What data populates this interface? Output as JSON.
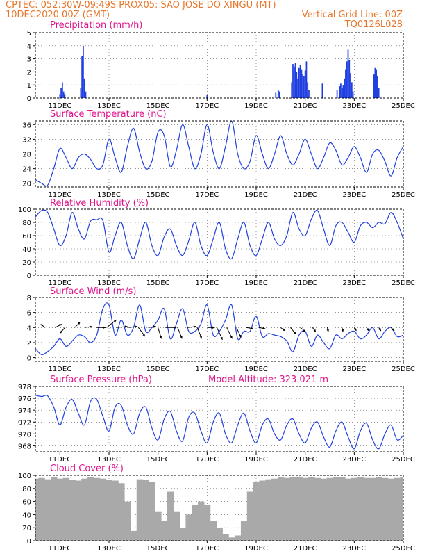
{
  "header": {
    "line1": "CPTEC:  052:30W-09:49S   PROX05: SAO JOSE DO XINGU (MT)",
    "date": "10DEC2020 00Z (GMT)",
    "grid_note": "Vertical Grid Line: 00Z",
    "model": "TQ0126L028"
  },
  "colors": {
    "header": "#e8762a",
    "title": "#e0138c",
    "series": "#1f3fe0",
    "cloud": "#a9a9a9",
    "arrow": "#000000"
  },
  "x_ticks": [
    "11DEC",
    "13DEC",
    "15DEC",
    "17DEC",
    "19DEC",
    "21DEC",
    "23DEC",
    "25DEC"
  ],
  "chart_data": [
    {
      "type": "bar",
      "title": "Precipitation (mm/h)",
      "xlabel": "",
      "ylabel": "",
      "ylim": [
        0,
        5
      ],
      "yticks": [
        0,
        1,
        2,
        3,
        4,
        5
      ],
      "x_unit": "day offset from 10DEC2020 00Z",
      "bars": [
        [
          1.0,
          0.3
        ],
        [
          1.05,
          0.8
        ],
        [
          1.1,
          1.2
        ],
        [
          1.15,
          0.5
        ],
        [
          1.2,
          0.3
        ],
        [
          1.85,
          0.8
        ],
        [
          1.9,
          3.2
        ],
        [
          1.95,
          4.0
        ],
        [
          2.0,
          1.5
        ],
        [
          2.05,
          0.5
        ],
        [
          3.5,
          0.05
        ],
        [
          7.0,
          0.25
        ],
        [
          9.8,
          0.4
        ],
        [
          9.9,
          0.6
        ],
        [
          9.95,
          0.5
        ],
        [
          10.45,
          1.2
        ],
        [
          10.5,
          2.6
        ],
        [
          10.55,
          2.4
        ],
        [
          10.6,
          2.7
        ],
        [
          10.65,
          2.0
        ],
        [
          10.7,
          1.5
        ],
        [
          10.75,
          2.3
        ],
        [
          10.8,
          2.5
        ],
        [
          10.85,
          2.2
        ],
        [
          10.9,
          1.8
        ],
        [
          10.95,
          1.7
        ],
        [
          11.0,
          2.1
        ],
        [
          11.05,
          2.8
        ],
        [
          11.1,
          1.2
        ],
        [
          11.15,
          0.6
        ],
        [
          11.7,
          1.1
        ],
        [
          12.3,
          0.6
        ],
        [
          12.4,
          0.9
        ],
        [
          12.45,
          1.1
        ],
        [
          12.5,
          0.8
        ],
        [
          12.55,
          1.0
        ],
        [
          12.6,
          1.5
        ],
        [
          12.65,
          2.2
        ],
        [
          12.7,
          2.8
        ],
        [
          12.75,
          3.7
        ],
        [
          12.8,
          2.9
        ],
        [
          12.85,
          1.9
        ],
        [
          12.9,
          1.2
        ],
        [
          12.95,
          0.5
        ],
        [
          13.8,
          1.8
        ],
        [
          13.85,
          2.3
        ],
        [
          13.9,
          2.2
        ],
        [
          13.95,
          1.7
        ],
        [
          14.0,
          0.8
        ]
      ]
    },
    {
      "type": "line",
      "title": "Surface Temperature (nC)",
      "ylim": [
        19,
        37
      ],
      "yticks": [
        20,
        24,
        28,
        32,
        36
      ],
      "x": [
        0,
        0.25,
        0.5,
        0.75,
        1,
        1.25,
        1.5,
        1.75,
        2,
        2.25,
        2.5,
        2.75,
        3,
        3.25,
        3.5,
        3.75,
        4,
        4.25,
        4.5,
        4.75,
        5,
        5.25,
        5.5,
        5.75,
        6,
        6.25,
        6.5,
        6.75,
        7,
        7.25,
        7.5,
        7.75,
        8,
        8.25,
        8.5,
        8.75,
        9,
        9.25,
        9.5,
        9.75,
        10,
        10.25,
        10.5,
        10.75,
        11,
        11.25,
        11.5,
        11.75,
        12,
        12.25,
        12.5,
        12.75,
        13,
        13.25,
        13.5,
        13.75,
        14,
        14.25,
        14.5,
        14.75,
        15
      ],
      "values": [
        21,
        20,
        19.5,
        24,
        29.5,
        27,
        24,
        27,
        28,
        26.5,
        24,
        25,
        32,
        27,
        23,
        30,
        35,
        28.5,
        24,
        26,
        34,
        33,
        24.5,
        29,
        36,
        30,
        24,
        28,
        36,
        28.5,
        24,
        30,
        37,
        28,
        24,
        26,
        33,
        28,
        24,
        28,
        33,
        28,
        25,
        28,
        32,
        28,
        24,
        27,
        31,
        29,
        25,
        27,
        30,
        27,
        23,
        28,
        29,
        26,
        22,
        27,
        30
      ]
    },
    {
      "type": "line",
      "title": "Relative Humidity (%)",
      "ylim": [
        0,
        100
      ],
      "yticks": [
        0,
        20,
        40,
        60,
        80,
        100
      ],
      "x": [
        0,
        0.25,
        0.5,
        0.75,
        1,
        1.25,
        1.5,
        1.75,
        2,
        2.25,
        2.5,
        2.75,
        3,
        3.25,
        3.5,
        3.75,
        4,
        4.25,
        4.5,
        4.75,
        5,
        5.25,
        5.5,
        5.75,
        6,
        6.25,
        6.5,
        6.75,
        7,
        7.25,
        7.5,
        7.75,
        8,
        8.25,
        8.5,
        8.75,
        9,
        9.25,
        9.5,
        9.75,
        10,
        10.25,
        10.5,
        10.75,
        11,
        11.25,
        11.5,
        11.75,
        12,
        12.25,
        12.5,
        12.75,
        13,
        13.25,
        13.5,
        13.75,
        14,
        14.25,
        14.5,
        14.75,
        15
      ],
      "values": [
        88,
        98,
        95,
        70,
        45,
        60,
        95,
        70,
        55,
        82,
        84,
        83,
        35,
        60,
        80,
        45,
        25,
        55,
        80,
        45,
        30,
        58,
        70,
        45,
        30,
        52,
        80,
        45,
        30,
        55,
        80,
        40,
        25,
        55,
        80,
        45,
        30,
        55,
        80,
        55,
        45,
        60,
        95,
        70,
        60,
        85,
        98,
        70,
        45,
        75,
        80,
        65,
        50,
        75,
        80,
        72,
        80,
        78,
        95,
        80,
        55
      ]
    },
    {
      "type": "line",
      "title": "Surface Wind (m/s)",
      "ylim": [
        -0.5,
        8
      ],
      "yticks": [
        0,
        2,
        4,
        6,
        8
      ],
      "x": [
        0,
        0.25,
        0.5,
        0.75,
        1,
        1.25,
        1.5,
        1.75,
        2,
        2.25,
        2.5,
        2.75,
        3,
        3.25,
        3.5,
        3.75,
        4,
        4.25,
        4.5,
        4.75,
        5,
        5.25,
        5.5,
        5.75,
        6,
        6.25,
        6.5,
        6.75,
        7,
        7.25,
        7.5,
        7.75,
        8,
        8.25,
        8.5,
        8.75,
        9,
        9.25,
        9.5,
        9.75,
        10,
        10.25,
        10.5,
        10.75,
        11,
        11.25,
        11.5,
        11.75,
        12,
        12.25,
        12.5,
        12.75,
        13,
        13.25,
        13.5,
        13.75,
        14,
        14.25,
        14.5,
        14.75,
        15
      ],
      "values": [
        1.2,
        0.4,
        0.8,
        1.5,
        2.5,
        1.5,
        2.2,
        3.0,
        2.8,
        2.0,
        3.0,
        6.5,
        7.0,
        3.0,
        5.0,
        3.0,
        4.0,
        7.0,
        3.5,
        4.0,
        5.0,
        6.5,
        2.5,
        4.5,
        6.5,
        3.5,
        3.5,
        4.5,
        7.0,
        3.0,
        3.5,
        5.0,
        7.0,
        2.5,
        3.5,
        3.5,
        5.5,
        2.8,
        3.2,
        3.0,
        2.8,
        2.2,
        0.8,
        3.0,
        3.5,
        1.5,
        3.0,
        2.0,
        1.2,
        3.0,
        2.5,
        3.2,
        3.5,
        2.5,
        3.0,
        4.0,
        2.5,
        3.5,
        4.0,
        2.8,
        3.0
      ]
    },
    {
      "type": "line",
      "title": "Surface Pressure (hPa)",
      "annotation": "Model Altitude: 323.021 m",
      "ylim": [
        967,
        978
      ],
      "yticks": [
        968,
        970,
        972,
        974,
        976,
        978
      ],
      "x": [
        0,
        0.25,
        0.5,
        0.75,
        1,
        1.25,
        1.5,
        1.75,
        2,
        2.25,
        2.5,
        2.75,
        3,
        3.25,
        3.5,
        3.75,
        4,
        4.25,
        4.5,
        4.75,
        5,
        5.25,
        5.5,
        5.75,
        6,
        6.25,
        6.5,
        6.75,
        7,
        7.25,
        7.5,
        7.75,
        8,
        8.25,
        8.5,
        8.75,
        9,
        9.25,
        9.5,
        9.75,
        10,
        10.25,
        10.5,
        10.75,
        11,
        11.25,
        11.5,
        11.75,
        12,
        12.25,
        12.5,
        12.75,
        13,
        13.25,
        13.5,
        13.75,
        14,
        14.25,
        14.5,
        14.75,
        15
      ],
      "values": [
        976.5,
        976.3,
        976.4,
        974.5,
        971.5,
        974.5,
        975.8,
        973.5,
        971.5,
        975.5,
        975.8,
        973.0,
        970.5,
        974.5,
        974.8,
        971.5,
        970.0,
        973.5,
        974.5,
        971.0,
        969.0,
        972.5,
        973.8,
        970.5,
        968.8,
        972.8,
        973.5,
        970.5,
        968.5,
        972.0,
        973.5,
        970.0,
        968.5,
        971.5,
        973.5,
        970.5,
        968.5,
        971.5,
        972.5,
        970.0,
        969.0,
        971.5,
        972.5,
        970.0,
        968.5,
        971.0,
        972.0,
        969.5,
        967.8,
        970.5,
        972.0,
        969.5,
        967.5,
        970.5,
        971.8,
        969.0,
        967.5,
        970.0,
        971.5,
        969.0,
        969.8
      ]
    },
    {
      "type": "area",
      "title": "Cloud Cover (%)",
      "ylim": [
        0,
        100
      ],
      "yticks": [
        0,
        20,
        40,
        60,
        80,
        100
      ],
      "x": [
        0,
        0.25,
        0.5,
        0.75,
        1,
        1.25,
        1.5,
        1.75,
        2,
        2.25,
        2.5,
        2.75,
        3,
        3.25,
        3.5,
        3.75,
        4,
        4.25,
        4.5,
        4.75,
        5,
        5.25,
        5.5,
        5.75,
        6,
        6.25,
        6.5,
        6.75,
        7,
        7.25,
        7.5,
        7.75,
        8,
        8.25,
        8.5,
        8.75,
        9,
        9.25,
        9.5,
        9.75,
        10,
        10.25,
        10.5,
        10.75,
        11,
        11.25,
        11.5,
        11.75,
        12,
        12.25,
        12.5,
        12.75,
        13,
        13.25,
        13.5,
        13.75,
        14,
        14.25,
        14.5,
        14.75,
        15
      ],
      "values": [
        95,
        96,
        94,
        97,
        95,
        96,
        93,
        92,
        95,
        97,
        96,
        95,
        93,
        92,
        88,
        60,
        15,
        94,
        93,
        90,
        45,
        30,
        75,
        45,
        20,
        40,
        55,
        60,
        55,
        30,
        20,
        10,
        5,
        8,
        30,
        75,
        90,
        92,
        94,
        95,
        97,
        96,
        97,
        98,
        96,
        97,
        96,
        95,
        96,
        97,
        97,
        95,
        96,
        97,
        96,
        96,
        97,
        96,
        95,
        96,
        97
      ]
    }
  ],
  "wind_arrows": [
    {
      "x": 0.4,
      "u": -0.4,
      "v": 0.3
    },
    {
      "x": 0.8,
      "u": 0.6,
      "v": 0.3
    },
    {
      "x": 1.2,
      "u": -0.4,
      "v": -0.5
    },
    {
      "x": 1.6,
      "u": 0.5,
      "v": 0.5
    },
    {
      "x": 2.0,
      "u": 0.7,
      "v": 0.1
    },
    {
      "x": 2.5,
      "u": 0.8,
      "v": 0.0
    },
    {
      "x": 2.9,
      "u": 0.9,
      "v": 0.7
    },
    {
      "x": 3.3,
      "u": 1.0,
      "v": 0.1
    },
    {
      "x": 3.8,
      "u": 0.8,
      "v": 0.1
    },
    {
      "x": 4.2,
      "u": 0.6,
      "v": -0.8
    },
    {
      "x": 4.6,
      "u": 0.7,
      "v": 0.1
    },
    {
      "x": 5.0,
      "u": 0.3,
      "v": -1.0
    },
    {
      "x": 5.3,
      "u": 1.0,
      "v": 0.0
    },
    {
      "x": 5.8,
      "u": 0.4,
      "v": -1.0
    },
    {
      "x": 6.2,
      "u": 0.8,
      "v": 0.1
    },
    {
      "x": 6.6,
      "u": 0.4,
      "v": -1.0
    },
    {
      "x": 7.0,
      "u": 0.7,
      "v": 0.0
    },
    {
      "x": 7.4,
      "u": 0.5,
      "v": -1.1
    },
    {
      "x": 7.8,
      "u": 0.5,
      "v": -1.0
    },
    {
      "x": 8.2,
      "u": 0.4,
      "v": -0.9
    },
    {
      "x": 8.6,
      "u": 0.6,
      "v": -0.1
    },
    {
      "x": 9.1,
      "u": 0.6,
      "v": -0.1
    },
    {
      "x": 10.0,
      "u": 0.4,
      "v": -0.3
    },
    {
      "x": 10.4,
      "u": 0.5,
      "v": -0.6
    },
    {
      "x": 10.8,
      "u": 0.5,
      "v": -0.4
    },
    {
      "x": 11.3,
      "u": 0.3,
      "v": -0.4
    },
    {
      "x": 11.9,
      "u": 0.1,
      "v": -0.4
    },
    {
      "x": 12.5,
      "u": 0.1,
      "v": -0.4
    },
    {
      "x": 13.0,
      "u": 0.2,
      "v": -0.3
    },
    {
      "x": 13.5,
      "u": 0.2,
      "v": -0.3
    },
    {
      "x": 14.0,
      "u": 0.2,
      "v": -0.3
    },
    {
      "x": 14.5,
      "u": 0.3,
      "v": -0.3
    }
  ]
}
